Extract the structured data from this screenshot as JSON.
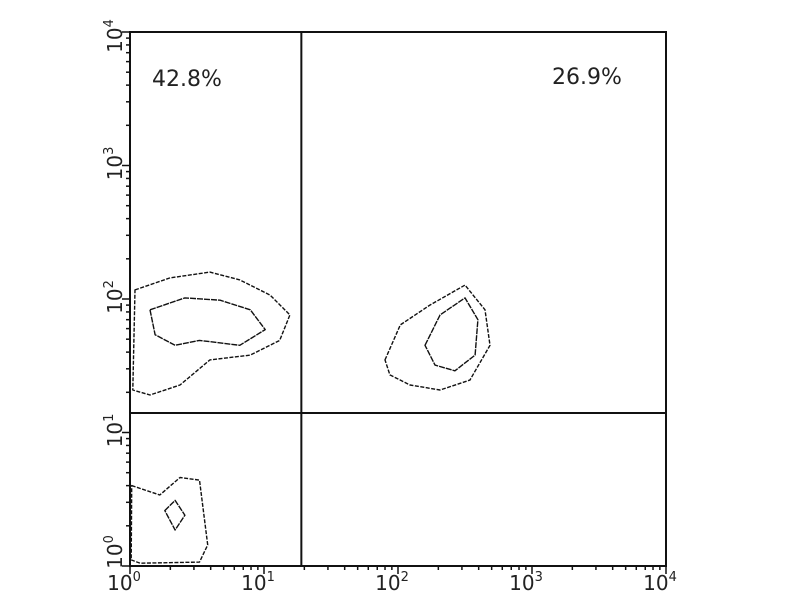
{
  "chart_data": {
    "type": "contour",
    "xscale": "log",
    "yscale": "log",
    "xlim": [
      1,
      10000
    ],
    "ylim": [
      1,
      10000
    ],
    "xticks": [
      {
        "value": 1,
        "label": "10",
        "exp": "0"
      },
      {
        "value": 10,
        "label": "10",
        "exp": "1"
      },
      {
        "value": 100,
        "label": "10",
        "exp": "2"
      },
      {
        "value": 1000,
        "label": "10",
        "exp": "3"
      },
      {
        "value": 10000,
        "label": "10",
        "exp": "4"
      }
    ],
    "yticks": [
      {
        "value": 1,
        "label": "10",
        "exp": "0"
      },
      {
        "value": 10,
        "label": "10",
        "exp": "1"
      },
      {
        "value": 100,
        "label": "10",
        "exp": "2"
      },
      {
        "value": 1000,
        "label": "10",
        "exp": "3"
      },
      {
        "value": 10000,
        "label": "10",
        "exp": "4"
      }
    ],
    "quadrant_gate": {
      "x": 19,
      "y": 14
    },
    "quadrant_labels": [
      {
        "quadrant": "upper-left",
        "text": "42.8%"
      },
      {
        "quadrant": "upper-right",
        "text": "26.9%"
      }
    ],
    "contours": [
      {
        "population": "upper-left",
        "level": 1,
        "points": [
          [
            1.09,
            117
          ],
          [
            1.99,
            144
          ],
          [
            3.95,
            159
          ],
          [
            6.6,
            139
          ],
          [
            11.1,
            107
          ],
          [
            15.6,
            76
          ],
          [
            13.1,
            49
          ],
          [
            7.9,
            38
          ],
          [
            3.95,
            35
          ],
          [
            2.36,
            22.7
          ],
          [
            1.41,
            19.1
          ],
          [
            1.05,
            20.8
          ]
        ]
      },
      {
        "population": "upper-left",
        "level": 2,
        "points": [
          [
            1.41,
            83
          ],
          [
            2.57,
            102
          ],
          [
            4.7,
            98
          ],
          [
            7.9,
            83
          ],
          [
            10.2,
            59
          ],
          [
            6.6,
            45
          ],
          [
            3.3,
            49
          ],
          [
            2.17,
            45
          ],
          [
            1.54,
            54
          ]
        ]
      },
      {
        "population": "upper-right",
        "level": 1,
        "points": [
          [
            80,
            35
          ],
          [
            104,
            64
          ],
          [
            173,
            90
          ],
          [
            316,
            127
          ],
          [
            446,
            83
          ],
          [
            486,
            45
          ],
          [
            344,
            24.7
          ],
          [
            206,
            20.8
          ],
          [
            123,
            22.7
          ],
          [
            87,
            27
          ]
        ]
      },
      {
        "population": "upper-right",
        "level": 2,
        "points": [
          [
            159,
            45
          ],
          [
            206,
            76
          ],
          [
            316,
            102
          ],
          [
            395,
            70
          ],
          [
            376,
            38
          ],
          [
            266,
            29
          ],
          [
            189,
            32
          ]
        ]
      },
      {
        "population": "lower-left",
        "level": 1,
        "points": [
          [
            1.03,
            4.0
          ],
          [
            1.67,
            3.4
          ],
          [
            2.36,
            4.6
          ],
          [
            3.3,
            4.4
          ],
          [
            3.8,
            1.44
          ],
          [
            3.3,
            1.07
          ],
          [
            1.19,
            1.05
          ],
          [
            1.02,
            1.11
          ]
        ]
      },
      {
        "population": "lower-left",
        "level": 2,
        "points": [
          [
            1.82,
            2.6
          ],
          [
            2.17,
            3.1
          ],
          [
            2.57,
            2.4
          ],
          [
            2.17,
            1.86
          ]
        ]
      }
    ],
    "colors": {
      "axes": "#111111",
      "contour": "#111111"
    }
  }
}
